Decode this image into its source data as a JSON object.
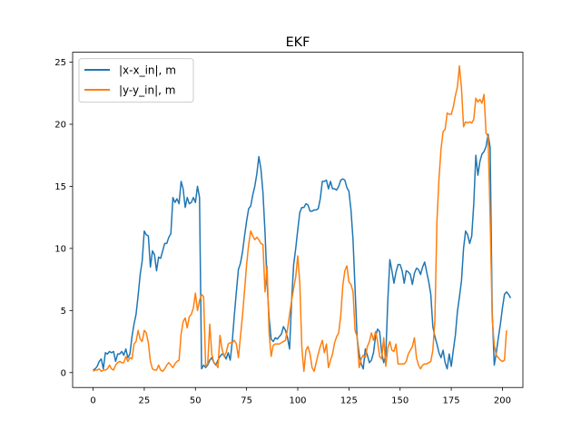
{
  "chart_data": {
    "type": "line",
    "title": "EKF",
    "xlabel": "",
    "ylabel": "",
    "xlim": [
      -10,
      210
    ],
    "ylim": [
      -1.2,
      25.8
    ],
    "xticks": [
      0,
      25,
      50,
      75,
      100,
      125,
      150,
      175,
      200
    ],
    "yticks": [
      0,
      5,
      10,
      15,
      20,
      25
    ],
    "grid": false,
    "legend_position": "top-left",
    "series": [
      {
        "name": "|x-x_in|, m",
        "color": "#1f77b4",
        "values": [
          0.2,
          0.3,
          0.5,
          0.9,
          1.1,
          0.3,
          1.6,
          1.5,
          1.7,
          1.6,
          1.7,
          0.9,
          1.5,
          1.5,
          1.7,
          1.4,
          1.9,
          1.2,
          1.5,
          2.9,
          3.9,
          4.7,
          6.2,
          7.9,
          9.0,
          11.4,
          11.1,
          11.0,
          8.5,
          9.8,
          9.5,
          8.2,
          9.3,
          9.2,
          9.8,
          10.4,
          10.4,
          10.9,
          11.2,
          14.1,
          13.7,
          14.0,
          13.6,
          15.4,
          14.8,
          13.3,
          14.1,
          13.6,
          13.7,
          14.1,
          13.7,
          15.0,
          14.1,
          0.3,
          0.6,
          0.4,
          0.6,
          1.0,
          1.2,
          0.8,
          0.6,
          1.0,
          1.3,
          1.5,
          1.4,
          1.1,
          1.6,
          1.0,
          2.5,
          4.6,
          6.5,
          8.3,
          8.8,
          9.7,
          11.0,
          12.2,
          13.2,
          13.4,
          14.3,
          15.0,
          16.0,
          17.4,
          16.4,
          14.5,
          11.3,
          7.2,
          4.4,
          2.7,
          2.5,
          2.8,
          2.7,
          2.9,
          3.1,
          3.7,
          3.4,
          2.8,
          1.9,
          5.8,
          8.7,
          10.0,
          11.5,
          12.9,
          13.3,
          13.3,
          13.6,
          13.5,
          13.0,
          13.0,
          13.1,
          13.1,
          13.2,
          14.0,
          15.4,
          15.4,
          15.5,
          14.8,
          15.4,
          14.8,
          14.8,
          14.7,
          15.0,
          15.5,
          15.6,
          15.5,
          14.9,
          14.6,
          13.1,
          10.7,
          6.7,
          2.8,
          1.5,
          0.7,
          0.3,
          1.9,
          1.4,
          0.8,
          1.0,
          1.6,
          2.9,
          3.5,
          3.3,
          1.6,
          0.8,
          1.4,
          5.8,
          9.1,
          8.2,
          7.2,
          8.1,
          8.7,
          8.7,
          8.2,
          7.2,
          8.2,
          8.1,
          7.9,
          7.1,
          8.0,
          8.4,
          8.3,
          7.9,
          8.5,
          8.9,
          8.1,
          7.3,
          6.3,
          3.7,
          2.9,
          2.3,
          1.6,
          1.2,
          1.8,
          0.8,
          0.3,
          1.5,
          0.5,
          1.8,
          3.0,
          4.9,
          6.1,
          7.4,
          10.0,
          11.4,
          11.1,
          10.4,
          11.0,
          13.6,
          17.5,
          15.9,
          17.0,
          17.6,
          17.8,
          18.2,
          19.2,
          18.1,
          4.9,
          0.6,
          1.6,
          2.8,
          3.9,
          5.2,
          6.3,
          6.5,
          6.3,
          6.0
        ],
        "linestyle": "solid"
      },
      {
        "name": "|y-y_in|, m",
        "color": "#ff7f0e",
        "values": [
          0.1,
          0.2,
          0.2,
          0.3,
          0.1,
          0.2,
          0.2,
          0.3,
          0.6,
          0.3,
          0.2,
          0.6,
          0.8,
          0.9,
          0.8,
          0.8,
          1.3,
          0.9,
          1.2,
          1.1,
          2.3,
          2.5,
          3.4,
          2.7,
          2.5,
          3.4,
          3.2,
          2.4,
          0.9,
          0.3,
          0.2,
          0.2,
          0.6,
          0.2,
          0.1,
          0.3,
          0.6,
          0.8,
          0.6,
          0.4,
          0.7,
          0.9,
          1.0,
          3.1,
          4.1,
          4.4,
          3.6,
          4.5,
          4.7,
          5.2,
          6.4,
          5.0,
          5.8,
          6.3,
          6.1,
          0.5,
          0.7,
          3.9,
          1.5,
          0.8,
          0.7,
          0.4,
          3.0,
          1.9,
          1.3,
          1.6,
          2.3,
          2.4,
          2.4,
          2.6,
          2.3,
          1.2,
          2.9,
          4.6,
          6.6,
          8.7,
          10.3,
          11.4,
          11.0,
          10.7,
          10.9,
          10.7,
          10.4,
          10.3,
          6.5,
          8.6,
          3.2,
          1.3,
          2.2,
          2.3,
          2.3,
          2.3,
          2.4,
          2.5,
          2.6,
          3.5,
          4.7,
          5.8,
          6.8,
          7.7,
          9.4,
          7.2,
          2.0,
          0.1,
          1.8,
          2.1,
          1.5,
          0.4,
          0.1,
          0.8,
          1.5,
          2.1,
          2.6,
          1.6,
          2.3,
          0.4,
          1.0,
          1.5,
          2.4,
          2.9,
          3.2,
          4.6,
          7.0,
          8.2,
          8.6,
          7.3,
          7.1,
          6.5,
          3.4,
          2.9,
          0.4,
          1.1,
          1.4,
          1.2,
          2.1,
          2.5,
          3.2,
          2.6,
          3.3,
          2.5,
          1.3,
          1.1,
          2.8,
          0.5,
          2.0,
          2.5,
          1.8,
          1.7,
          2.3,
          0.7,
          0.7,
          0.7,
          0.7,
          0.9,
          1.5,
          1.8,
          2.1,
          2.8,
          1.2,
          0.6,
          0.3,
          0.6,
          0.7,
          0.7,
          0.8,
          0.9,
          1.8,
          4.2,
          12.2,
          15.6,
          18.0,
          19.4,
          19.6,
          20.9,
          20.8,
          20.8,
          21.4,
          22.3,
          23.0,
          24.7,
          22.9,
          19.8,
          20.2,
          20.1,
          20.2,
          20.1,
          20.4,
          22.1,
          21.8,
          22.0,
          21.7,
          22.4,
          19.3,
          19.0,
          12.4,
          4.4,
          2.2,
          1.4,
          1.2,
          1.0,
          0.9,
          1.0,
          3.4
        ],
        "linestyle": "solid"
      }
    ]
  }
}
